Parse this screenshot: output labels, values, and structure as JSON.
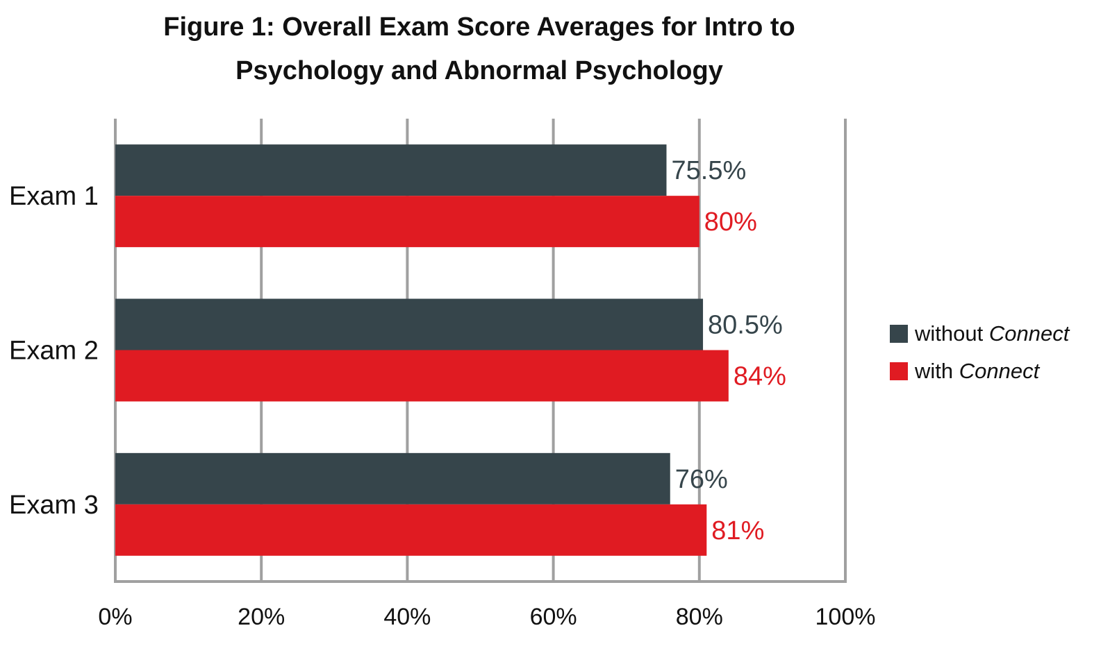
{
  "chart_data": {
    "type": "bar",
    "orientation": "horizontal",
    "title_lines": [
      "Figure 1: Overall Exam Score Averages for Intro to",
      "Psychology and Abnormal Psychology"
    ],
    "categories": [
      "Exam 1",
      "Exam 2",
      "Exam 3"
    ],
    "series": [
      {
        "name": "without Connect",
        "name_plain": "without ",
        "name_italic": "Connect",
        "color": "#36454b",
        "values": [
          75.5,
          80.5,
          76
        ],
        "labels": [
          "75.5%",
          "80.5%",
          "76%"
        ]
      },
      {
        "name": "with Connect",
        "name_plain": "with ",
        "name_italic": "Connect",
        "color": "#e01b22",
        "values": [
          80,
          84,
          81
        ],
        "labels": [
          "80%",
          "84%",
          "81%"
        ]
      }
    ],
    "xlim": [
      0,
      100
    ],
    "xticks": [
      0,
      20,
      40,
      60,
      80,
      100
    ],
    "xtick_labels": [
      "0%",
      "20%",
      "40%",
      "60%",
      "80%",
      "100%"
    ],
    "grid": true,
    "legend_position": "right"
  }
}
